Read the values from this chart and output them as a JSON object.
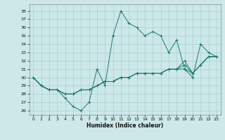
{
  "xlabel": "Humidex (Indice chaleur)",
  "background_color": "#cce8e8",
  "grid_color": "#aad0d0",
  "line_color": "#1a7a6e",
  "xlim": [
    -0.5,
    23.5
  ],
  "ylim": [
    25.5,
    38.8
  ],
  "yticks": [
    26,
    27,
    28,
    29,
    30,
    31,
    32,
    33,
    34,
    35,
    36,
    37,
    38
  ],
  "xticks": [
    0,
    1,
    2,
    3,
    4,
    5,
    6,
    7,
    8,
    9,
    10,
    11,
    12,
    13,
    14,
    15,
    16,
    17,
    18,
    19,
    20,
    21,
    22,
    23
  ],
  "series": [
    [
      30.0,
      29.0,
      28.5,
      28.5,
      27.5,
      26.5,
      26.0,
      27.0,
      31.0,
      29.0,
      35.0,
      38.0,
      36.5,
      36.0,
      35.0,
      35.5,
      35.0,
      33.0,
      34.5,
      31.0,
      30.0,
      34.0,
      33.0,
      32.5
    ],
    [
      30.0,
      29.0,
      28.5,
      28.5,
      28.0,
      28.0,
      28.5,
      28.5,
      29.0,
      29.5,
      29.5,
      30.0,
      30.0,
      30.5,
      30.5,
      30.5,
      30.5,
      31.0,
      31.0,
      31.0,
      30.5,
      31.5,
      32.5,
      32.5
    ],
    [
      30.0,
      29.0,
      28.5,
      28.5,
      28.0,
      28.0,
      28.5,
      28.5,
      29.0,
      29.5,
      29.5,
      30.0,
      30.0,
      30.5,
      30.5,
      30.5,
      30.5,
      31.0,
      31.0,
      31.5,
      30.5,
      31.5,
      32.5,
      32.5
    ],
    [
      30.0,
      29.0,
      28.5,
      28.5,
      28.0,
      28.0,
      28.5,
      28.5,
      29.0,
      29.5,
      29.5,
      30.0,
      30.0,
      30.5,
      30.5,
      30.5,
      30.5,
      31.0,
      31.0,
      32.0,
      30.5,
      31.5,
      32.5,
      32.5
    ]
  ]
}
